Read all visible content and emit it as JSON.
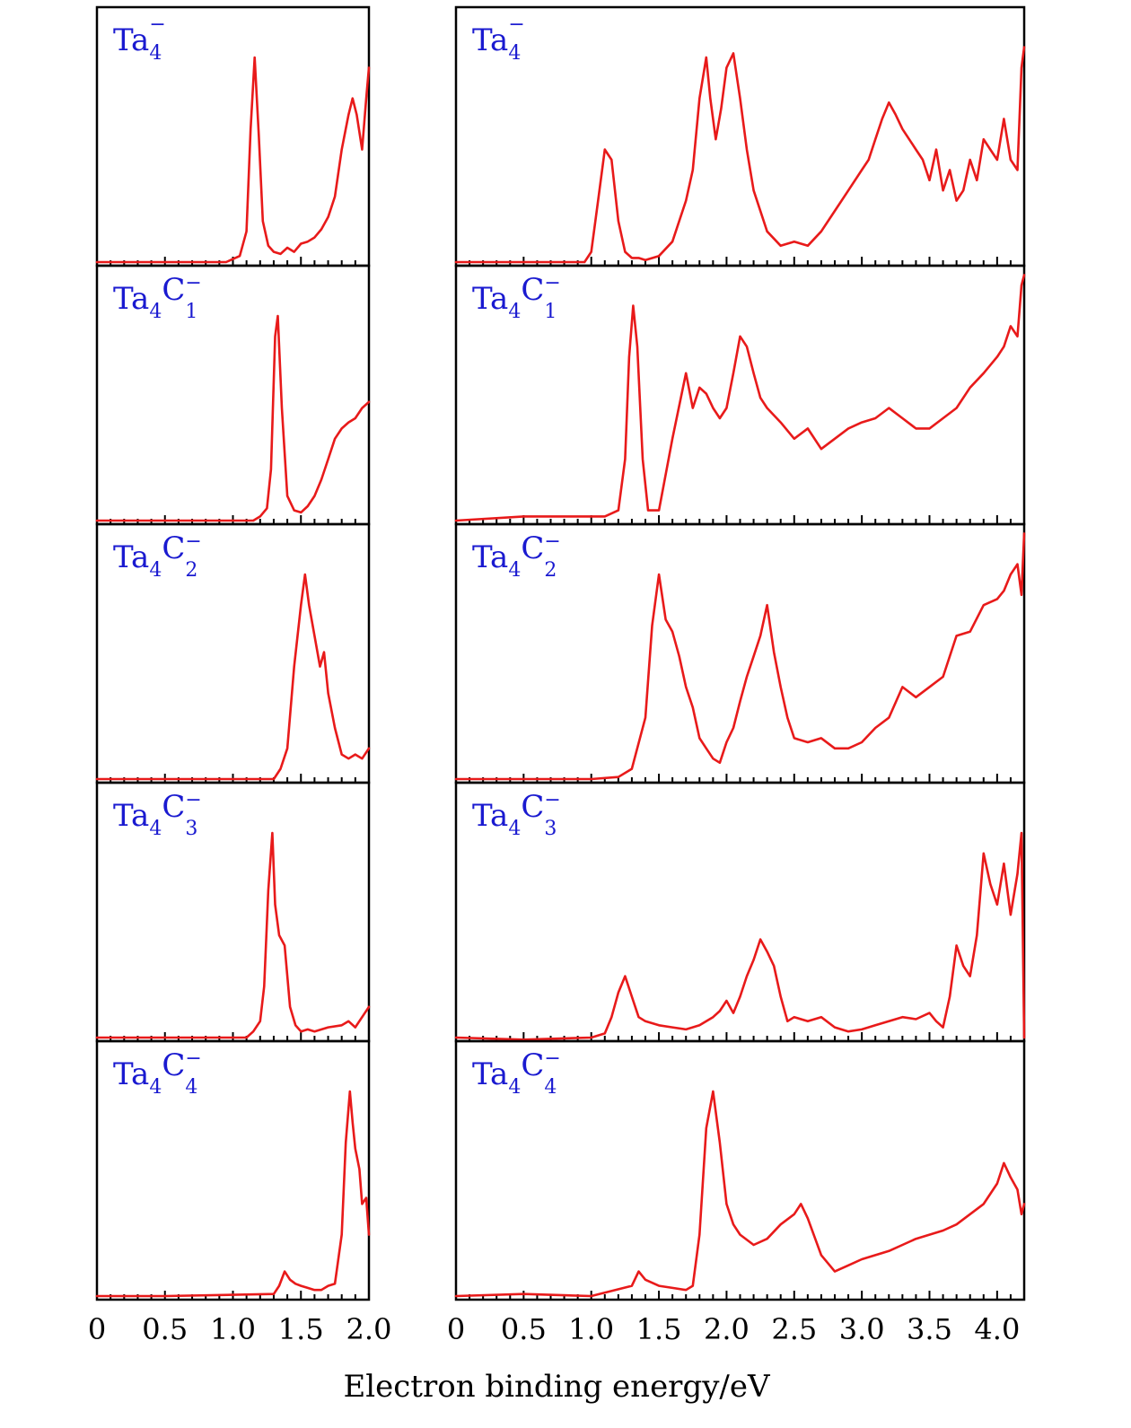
{
  "chart_data": {
    "type": "line",
    "xlabel": "Electron binding energy/eV",
    "colors": {
      "spectrum": "#e81a1a",
      "label": "#1a1ad0",
      "axes": "#000000"
    },
    "grid": false,
    "columns": [
      {
        "xlim": [
          0,
          2.0
        ],
        "tick_labels": [
          "0",
          "0.5",
          "1.0",
          "1.5",
          "2.0"
        ],
        "tick_values": [
          0,
          0.5,
          1.0,
          1.5,
          2.0
        ],
        "minor_step": 0.1
      },
      {
        "xlim": [
          0,
          4.2
        ],
        "tick_labels": [
          "0",
          "0.5",
          "1.0",
          "1.5",
          "2.0",
          "2.5",
          "3.0",
          "3.5",
          "4.0"
        ],
        "tick_values": [
          0,
          0.5,
          1.0,
          1.5,
          2.0,
          2.5,
          3.0,
          3.5,
          4.0
        ],
        "minor_step": 0.1
      }
    ],
    "rows": [
      {
        "label": {
          "main": "Ta",
          "sub": "4",
          "c_main": "",
          "c_sub": "",
          "sup": "−"
        },
        "series": [
          {
            "x": [
              0,
              0.5,
              0.95,
              1.05,
              1.1,
              1.13,
              1.16,
              1.19,
              1.22,
              1.26,
              1.3,
              1.35,
              1.4,
              1.45,
              1.5,
              1.55,
              1.6,
              1.65,
              1.7,
              1.75,
              1.8,
              1.85,
              1.88,
              1.91,
              1.95,
              1.98,
              2.0
            ],
            "y": [
              0,
              0,
              0,
              0.03,
              0.15,
              0.65,
              1.0,
              0.62,
              0.2,
              0.08,
              0.05,
              0.04,
              0.07,
              0.05,
              0.09,
              0.1,
              0.12,
              0.16,
              0.22,
              0.32,
              0.55,
              0.72,
              0.8,
              0.72,
              0.55,
              0.8,
              0.95
            ]
          },
          {
            "x": [
              0,
              0.5,
              0.95,
              1.0,
              1.05,
              1.1,
              1.15,
              1.2,
              1.25,
              1.3,
              1.35,
              1.4,
              1.5,
              1.6,
              1.7,
              1.75,
              1.8,
              1.85,
              1.88,
              1.92,
              1.96,
              2.0,
              2.05,
              2.1,
              2.15,
              2.2,
              2.3,
              2.4,
              2.5,
              2.6,
              2.7,
              2.8,
              2.9,
              3.0,
              3.05,
              3.1,
              3.15,
              3.2,
              3.25,
              3.3,
              3.35,
              3.4,
              3.45,
              3.5,
              3.55,
              3.6,
              3.65,
              3.7,
              3.75,
              3.8,
              3.85,
              3.9,
              3.95,
              4.0,
              4.05,
              4.1,
              4.15,
              4.18,
              4.2
            ],
            "y": [
              0,
              0,
              0,
              0.05,
              0.3,
              0.55,
              0.5,
              0.2,
              0.05,
              0.02,
              0.02,
              0.01,
              0.03,
              0.1,
              0.3,
              0.45,
              0.8,
              1.0,
              0.8,
              0.6,
              0.75,
              0.95,
              1.02,
              0.8,
              0.55,
              0.35,
              0.15,
              0.08,
              0.1,
              0.08,
              0.15,
              0.25,
              0.35,
              0.45,
              0.5,
              0.6,
              0.7,
              0.78,
              0.72,
              0.65,
              0.6,
              0.55,
              0.5,
              0.4,
              0.55,
              0.35,
              0.45,
              0.3,
              0.35,
              0.5,
              0.4,
              0.6,
              0.55,
              0.5,
              0.7,
              0.5,
              0.45,
              0.95,
              1.05
            ]
          }
        ]
      },
      {
        "label": {
          "main": "Ta",
          "sub": "4",
          "c_main": "C",
          "c_sub": "1",
          "sup": "−"
        },
        "series": [
          {
            "x": [
              0,
              0.5,
              1.15,
              1.2,
              1.25,
              1.28,
              1.31,
              1.33,
              1.36,
              1.4,
              1.45,
              1.5,
              1.55,
              1.6,
              1.65,
              1.7,
              1.75,
              1.8,
              1.85,
              1.9,
              1.95,
              2.0
            ],
            "y": [
              0,
              0,
              0,
              0.02,
              0.06,
              0.25,
              0.9,
              1.0,
              0.55,
              0.12,
              0.05,
              0.04,
              0.07,
              0.12,
              0.2,
              0.3,
              0.4,
              0.45,
              0.48,
              0.5,
              0.55,
              0.58
            ]
          },
          {
            "x": [
              0,
              0.5,
              1.1,
              1.2,
              1.25,
              1.28,
              1.31,
              1.34,
              1.38,
              1.42,
              1.5,
              1.6,
              1.7,
              1.75,
              1.8,
              1.85,
              1.9,
              1.95,
              2.0,
              2.05,
              2.1,
              2.15,
              2.2,
              2.25,
              2.3,
              2.4,
              2.5,
              2.6,
              2.7,
              2.8,
              2.9,
              3.0,
              3.1,
              3.2,
              3.3,
              3.4,
              3.5,
              3.6,
              3.7,
              3.8,
              3.9,
              4.0,
              4.05,
              4.1,
              4.15,
              4.18,
              4.2
            ],
            "y": [
              0,
              0.02,
              0.02,
              0.05,
              0.3,
              0.8,
              1.05,
              0.85,
              0.3,
              0.05,
              0.05,
              0.4,
              0.72,
              0.55,
              0.65,
              0.62,
              0.55,
              0.5,
              0.55,
              0.72,
              0.9,
              0.85,
              0.72,
              0.6,
              0.55,
              0.48,
              0.4,
              0.45,
              0.35,
              0.4,
              0.45,
              0.48,
              0.5,
              0.55,
              0.5,
              0.45,
              0.45,
              0.5,
              0.55,
              0.65,
              0.72,
              0.8,
              0.85,
              0.95,
              0.9,
              1.15,
              1.2
            ]
          }
        ]
      },
      {
        "label": {
          "main": "Ta",
          "sub": "4",
          "c_main": "C",
          "c_sub": "2",
          "sup": "−"
        },
        "series": [
          {
            "x": [
              0,
              0.5,
              1.3,
              1.35,
              1.4,
              1.45,
              1.5,
              1.53,
              1.56,
              1.6,
              1.64,
              1.67,
              1.7,
              1.75,
              1.8,
              1.85,
              1.9,
              1.95,
              2.0
            ],
            "y": [
              0,
              0,
              0,
              0.05,
              0.15,
              0.55,
              0.85,
              1.0,
              0.85,
              0.7,
              0.55,
              0.62,
              0.42,
              0.25,
              0.12,
              0.1,
              0.12,
              0.1,
              0.15
            ]
          },
          {
            "x": [
              0,
              0.5,
              1.0,
              1.2,
              1.3,
              1.4,
              1.45,
              1.5,
              1.55,
              1.6,
              1.65,
              1.7,
              1.75,
              1.8,
              1.85,
              1.9,
              1.95,
              2.0,
              2.05,
              2.1,
              2.15,
              2.2,
              2.25,
              2.3,
              2.35,
              2.4,
              2.45,
              2.5,
              2.6,
              2.7,
              2.8,
              2.9,
              3.0,
              3.1,
              3.2,
              3.3,
              3.4,
              3.5,
              3.6,
              3.7,
              3.8,
              3.9,
              4.0,
              4.05,
              4.1,
              4.15,
              4.18,
              4.2
            ],
            "y": [
              0,
              0,
              0,
              0.01,
              0.05,
              0.3,
              0.75,
              1.0,
              0.78,
              0.72,
              0.6,
              0.45,
              0.35,
              0.2,
              0.15,
              0.1,
              0.08,
              0.18,
              0.25,
              0.38,
              0.5,
              0.6,
              0.7,
              0.85,
              0.62,
              0.45,
              0.3,
              0.2,
              0.18,
              0.2,
              0.15,
              0.15,
              0.18,
              0.25,
              0.3,
              0.45,
              0.4,
              0.45,
              0.5,
              0.7,
              0.72,
              0.85,
              0.88,
              0.92,
              1.0,
              1.05,
              0.9,
              1.2
            ]
          }
        ]
      },
      {
        "label": {
          "main": "Ta",
          "sub": "4",
          "c_main": "C",
          "c_sub": "3",
          "sup": "−"
        },
        "series": [
          {
            "x": [
              0,
              0.5,
              1.1,
              1.15,
              1.2,
              1.23,
              1.26,
              1.29,
              1.31,
              1.34,
              1.38,
              1.42,
              1.46,
              1.5,
              1.55,
              1.6,
              1.7,
              1.8,
              1.85,
              1.9,
              1.95,
              2.0
            ],
            "y": [
              0,
              0,
              0,
              0.03,
              0.08,
              0.25,
              0.72,
              1.0,
              0.65,
              0.5,
              0.45,
              0.15,
              0.06,
              0.03,
              0.04,
              0.03,
              0.05,
              0.06,
              0.08,
              0.05,
              0.1,
              0.15
            ]
          },
          {
            "x": [
              0,
              0.5,
              1.0,
              1.1,
              1.15,
              1.2,
              1.25,
              1.3,
              1.35,
              1.4,
              1.5,
              1.6,
              1.7,
              1.8,
              1.9,
              1.95,
              2.0,
              2.05,
              2.1,
              2.15,
              2.2,
              2.25,
              2.3,
              2.35,
              2.4,
              2.45,
              2.5,
              2.6,
              2.7,
              2.8,
              2.9,
              3.0,
              3.1,
              3.2,
              3.3,
              3.4,
              3.5,
              3.55,
              3.6,
              3.65,
              3.7,
              3.75,
              3.8,
              3.85,
              3.9,
              3.95,
              4.0,
              4.05,
              4.1,
              4.15,
              4.18,
              4.2
            ],
            "y": [
              0,
              -0.01,
              0,
              0.02,
              0.1,
              0.22,
              0.3,
              0.2,
              0.1,
              0.08,
              0.06,
              0.05,
              0.04,
              0.06,
              0.1,
              0.13,
              0.18,
              0.12,
              0.2,
              0.3,
              0.38,
              0.48,
              0.42,
              0.35,
              0.2,
              0.08,
              0.1,
              0.08,
              0.1,
              0.05,
              0.03,
              0.04,
              0.06,
              0.08,
              0.1,
              0.09,
              0.12,
              0.08,
              0.05,
              0.2,
              0.45,
              0.35,
              0.3,
              0.5,
              0.9,
              0.75,
              0.65,
              0.85,
              0.6,
              0.8,
              1.0,
              0.0
            ]
          }
        ]
      },
      {
        "label": {
          "main": "Ta",
          "sub": "4",
          "c_main": "C",
          "c_sub": "4",
          "sup": "−"
        },
        "series": [
          {
            "x": [
              0,
              0.5,
              1.3,
              1.34,
              1.38,
              1.42,
              1.46,
              1.5,
              1.55,
              1.6,
              1.65,
              1.7,
              1.75,
              1.8,
              1.83,
              1.86,
              1.88,
              1.9,
              1.93,
              1.95,
              1.98,
              2.0
            ],
            "y": [
              0,
              0,
              0.01,
              0.05,
              0.12,
              0.08,
              0.06,
              0.05,
              0.04,
              0.03,
              0.03,
              0.05,
              0.06,
              0.3,
              0.75,
              1.0,
              0.85,
              0.72,
              0.62,
              0.45,
              0.48,
              0.3
            ]
          },
          {
            "x": [
              0,
              0.5,
              1.0,
              1.3,
              1.35,
              1.4,
              1.5,
              1.6,
              1.7,
              1.75,
              1.8,
              1.85,
              1.9,
              1.95,
              2.0,
              2.05,
              2.1,
              2.2,
              2.3,
              2.4,
              2.5,
              2.55,
              2.6,
              2.7,
              2.8,
              2.9,
              3.0,
              3.1,
              3.2,
              3.3,
              3.4,
              3.5,
              3.6,
              3.7,
              3.8,
              3.9,
              4.0,
              4.05,
              4.1,
              4.15,
              4.18,
              4.2
            ],
            "y": [
              0,
              0.01,
              0.0,
              0.05,
              0.12,
              0.08,
              0.05,
              0.04,
              0.03,
              0.05,
              0.3,
              0.82,
              1.0,
              0.75,
              0.45,
              0.35,
              0.3,
              0.25,
              0.28,
              0.35,
              0.4,
              0.45,
              0.38,
              0.2,
              0.12,
              0.15,
              0.18,
              0.2,
              0.22,
              0.25,
              0.28,
              0.3,
              0.32,
              0.35,
              0.4,
              0.45,
              0.55,
              0.65,
              0.58,
              0.52,
              0.4,
              0.45
            ]
          }
        ]
      }
    ]
  }
}
